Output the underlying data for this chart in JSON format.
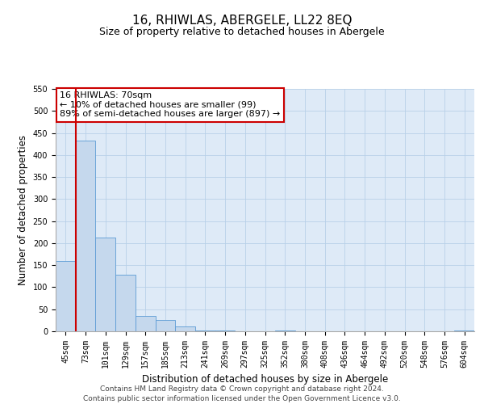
{
  "title": "16, RHIWLAS, ABERGELE, LL22 8EQ",
  "subtitle": "Size of property relative to detached houses in Abergele",
  "xlabel": "Distribution of detached houses by size in Abergele",
  "ylabel": "Number of detached properties",
  "bar_labels": [
    "45sqm",
    "73sqm",
    "101sqm",
    "129sqm",
    "157sqm",
    "185sqm",
    "213sqm",
    "241sqm",
    "269sqm",
    "297sqm",
    "325sqm",
    "352sqm",
    "380sqm",
    "408sqm",
    "436sqm",
    "464sqm",
    "492sqm",
    "520sqm",
    "548sqm",
    "576sqm",
    "604sqm"
  ],
  "bar_values": [
    159,
    432,
    213,
    129,
    35,
    26,
    11,
    1,
    1,
    0,
    0,
    1,
    0,
    0,
    0,
    0,
    0,
    0,
    0,
    0,
    1
  ],
  "bar_color": "#c5d8ed",
  "bar_edge_color": "#5b9bd5",
  "marker_line_color": "#cc0000",
  "annotation_title": "16 RHIWLAS: 70sqm",
  "annotation_line1": "← 10% of detached houses are smaller (99)",
  "annotation_line2": "89% of semi-detached houses are larger (897) →",
  "annotation_box_color": "#ffffff",
  "annotation_box_edge_color": "#cc0000",
  "ylim": [
    0,
    550
  ],
  "yticks": [
    0,
    50,
    100,
    150,
    200,
    250,
    300,
    350,
    400,
    450,
    500,
    550
  ],
  "footer_line1": "Contains HM Land Registry data © Crown copyright and database right 2024.",
  "footer_line2": "Contains public sector information licensed under the Open Government Licence v3.0.",
  "background_color": "#ffffff",
  "axes_background": "#deeaf7",
  "grid_color": "#b8d0e8",
  "title_fontsize": 11,
  "subtitle_fontsize": 9,
  "axis_label_fontsize": 8.5,
  "tick_fontsize": 7,
  "annotation_fontsize": 8,
  "footer_fontsize": 6.5
}
